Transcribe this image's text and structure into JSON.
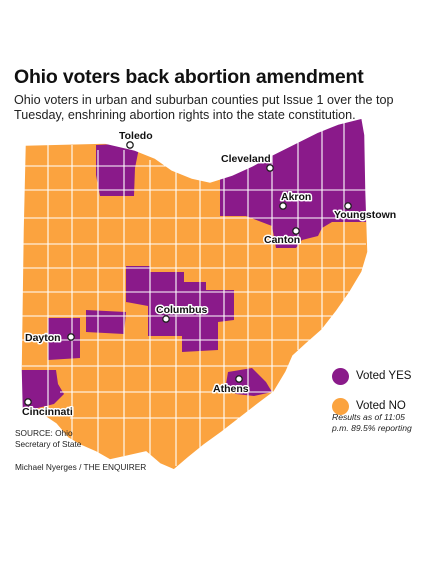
{
  "headline": "Ohio voters back abortion amendment",
  "deck": "Ohio voters in urban and suburban counties put Issue 1 over the top Tuesday, enshrining abortion rights into the state constitution.",
  "colors": {
    "yes": "#8a1a8a",
    "no": "#fba33f",
    "border": "#ffffff"
  },
  "cities": [
    {
      "name": "Toledo"
    },
    {
      "name": "Cleveland"
    },
    {
      "name": "Akron"
    },
    {
      "name": "Youngstown"
    },
    {
      "name": "Canton"
    },
    {
      "name": "Columbus"
    },
    {
      "name": "Dayton"
    },
    {
      "name": "Athens"
    },
    {
      "name": "Cincinnati"
    }
  ],
  "legend": {
    "yes_label": "Voted YES",
    "no_label": "Voted NO"
  },
  "results_note": "Results as of 11:05 p.m. 89.5% reporting",
  "source": "SOURCE: Ohio Secretary of State",
  "credit": "Michael Nyerges / THE ENQUIRER"
}
